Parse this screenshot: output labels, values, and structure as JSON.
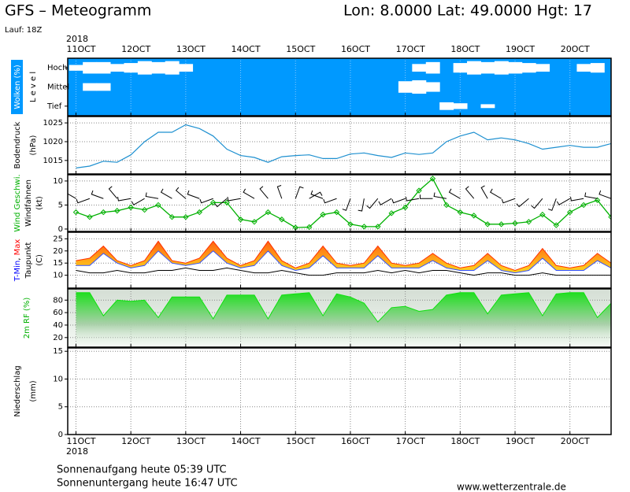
{
  "title": "GFS – Meteogramm",
  "location": "Lon: 8.0000 Lat: 49.0000 Hgt: 17",
  "run": "Lauf: 18Z",
  "footer": {
    "sunrise": "Sonnenaufgang heute 05:39 UTC",
    "sunset": "Sonnenuntergang heute 16:47 UTC",
    "source": "www.wetterzentrale.de"
  },
  "time_axis": {
    "year": "2018",
    "xlim": [
      -0.15,
      9.75
    ],
    "xticks": [
      {
        "value": 0,
        "label": "11OCT"
      },
      {
        "value": 1,
        "label": "12OCT"
      },
      {
        "value": 2,
        "label": "13OCT"
      },
      {
        "value": 3,
        "label": "14OCT"
      },
      {
        "value": 4,
        "label": "15OCT"
      },
      {
        "value": 5,
        "label": "16OCT"
      },
      {
        "value": 6,
        "label": "17OCT"
      },
      {
        "value": 7,
        "label": "18OCT"
      },
      {
        "value": 8,
        "label": "19OCT"
      },
      {
        "value": 9,
        "label": "20OCT"
      }
    ],
    "x": [
      0,
      0.25,
      0.5,
      0.75,
      1,
      1.25,
      1.5,
      1.75,
      2,
      2.25,
      2.5,
      2.75,
      3,
      3.25,
      3.5,
      3.75,
      4,
      4.25,
      4.5,
      4.75,
      5,
      5.25,
      5.5,
      5.75,
      6,
      6.25,
      6.5,
      6.75,
      7,
      7.25,
      7.5,
      7.75,
      8,
      8.25,
      8.5,
      8.75,
      9,
      9.25,
      9.5,
      9.75
    ]
  },
  "chart_data": [
    {
      "type": "cloud",
      "background": "#0099ff",
      "cloud_color": "#ffffff",
      "ylabel": [
        [
          {
            "text": "Wolken (%)",
            "color": "#ffffff",
            "background": "#0099ff"
          }
        ],
        [
          {
            "text": "L e v e l",
            "color": "#000000"
          }
        ]
      ],
      "series": [
        {
          "name": "Hoch",
          "values": [
            30,
            60,
            60,
            40,
            50,
            70,
            60,
            70,
            40,
            0,
            0,
            0,
            0,
            0,
            0,
            0,
            0,
            0,
            0,
            0,
            0,
            0,
            0,
            0,
            0,
            40,
            60,
            0,
            50,
            70,
            60,
            70,
            60,
            50,
            40,
            0,
            0,
            40,
            50,
            0
          ]
        },
        {
          "name": "Mittel",
          "values": [
            0,
            40,
            40,
            0,
            0,
            0,
            0,
            0,
            0,
            0,
            0,
            0,
            0,
            0,
            0,
            0,
            0,
            0,
            0,
            0,
            0,
            0,
            0,
            0,
            60,
            70,
            50,
            0,
            0,
            0,
            0,
            0,
            0,
            0,
            0,
            0,
            0,
            0,
            0,
            0
          ]
        },
        {
          "name": "Tief",
          "values": [
            0,
            0,
            0,
            0,
            0,
            0,
            0,
            0,
            0,
            0,
            0,
            0,
            0,
            0,
            0,
            0,
            0,
            0,
            0,
            0,
            0,
            0,
            0,
            0,
            0,
            0,
            0,
            40,
            30,
            0,
            20,
            0,
            0,
            0,
            0,
            0,
            0,
            0,
            0,
            0
          ]
        }
      ]
    },
    {
      "type": "line",
      "ylim": [
        1011.4,
        1026.7
      ],
      "yticks": [
        1015,
        1020,
        1025
      ],
      "grid": true,
      "ylabel": [
        [
          {
            "text": "Bodendruck",
            "color": "#000000"
          }
        ],
        [
          {
            "text": "(hPa)",
            "color": "#000000"
          }
        ]
      ],
      "series": [
        {
          "color": "#1e90d0",
          "values": [
            1013,
            1013.5,
            1014.8,
            1014.5,
            1016.5,
            1020,
            1022.5,
            1022.5,
            1024.5,
            1023.5,
            1021.5,
            1018,
            1016.3,
            1015.8,
            1014.5,
            1016,
            1016.3,
            1016.5,
            1015.5,
            1015.5,
            1016.7,
            1017,
            1016.3,
            1015.8,
            1017,
            1016.6,
            1017,
            1020,
            1021.5,
            1022.5,
            1020.5,
            1021,
            1020.5,
            1019.5,
            1018,
            1018.5,
            1019,
            1018.5,
            1018.5,
            1019.5
          ]
        }
      ]
    },
    {
      "type": "wind",
      "ylim": [
        -0.5,
        11.3
      ],
      "yticks": [
        0,
        5,
        10
      ],
      "grid": true,
      "ylabel": [
        [
          {
            "text": "Wind Geschwi.",
            "color": "#00b000"
          }
        ],
        [
          {
            "text": "Windfahnen",
            "color": "#000000"
          }
        ],
        [
          {
            "text": "(kt)",
            "color": "#000000"
          }
        ]
      ],
      "series": [
        {
          "kind": "speed",
          "color": "#00b000",
          "values": [
            3.5,
            2.5,
            3.5,
            3.8,
            4.5,
            4,
            5,
            2.5,
            2.5,
            3.5,
            5.5,
            5.5,
            2,
            1.5,
            3.5,
            2,
            0.3,
            0.4,
            3,
            3.5,
            1,
            0.5,
            0.5,
            3.3,
            4.5,
            8,
            10.5,
            5,
            3.5,
            2.8,
            1,
            1,
            1.2,
            1.5,
            3,
            0.8,
            3.5,
            5,
            6,
            2.5
          ]
        },
        {
          "kind": "barb",
          "color": "#000000",
          "values": [
            300,
            250,
            290,
            320,
            260,
            240,
            280,
            300,
            310,
            290,
            250,
            230,
            260,
            300,
            320,
            340,
            20,
            60,
            290,
            250,
            200,
            190,
            220,
            240,
            250,
            260,
            270,
            280,
            300,
            320,
            330,
            300,
            250,
            230,
            220,
            200,
            240,
            260,
            280,
            290
          ]
        }
      ]
    },
    {
      "type": "band",
      "ylim": [
        4.7,
        27.7
      ],
      "yticks": [
        10,
        15,
        20,
        25
      ],
      "grid": true,
      "fill": [
        "#ffe020",
        "#ff5a10"
      ],
      "ylabel": [
        [
          {
            "text": "T-Min",
            "color": "#0000ff"
          },
          {
            "text": ", ",
            "color": "#000000"
          },
          {
            "text": "Max",
            "color": "#ff0000"
          }
        ],
        [
          {
            "text": "Taupunkt",
            "color": "#000000"
          }
        ],
        [
          {
            "text": "(C)",
            "color": "#000000"
          }
        ]
      ],
      "series": [
        {
          "color": "#3050ff",
          "values": [
            14,
            14,
            19,
            15,
            13,
            14,
            20,
            15,
            14,
            15,
            20,
            15,
            13,
            14,
            20,
            14,
            12,
            13,
            18,
            13,
            13,
            13,
            18,
            13,
            13,
            13,
            16,
            13,
            12,
            12,
            16,
            12,
            11,
            12,
            17,
            12,
            12,
            12,
            16,
            13
          ]
        },
        {
          "color": "#ff3000",
          "values": [
            16,
            17,
            22,
            16,
            14,
            16,
            24,
            16,
            15,
            17,
            24,
            17,
            14,
            16,
            24,
            16,
            13,
            15,
            22,
            15,
            14,
            15,
            22,
            15,
            14,
            15,
            19,
            15,
            13,
            14,
            19,
            14,
            12,
            14,
            21,
            14,
            13,
            14,
            19,
            15
          ]
        },
        {
          "color": "#000000",
          "values": [
            12,
            11,
            11,
            12,
            11,
            11,
            12,
            12,
            13,
            12,
            12,
            13,
            12,
            11,
            11,
            12,
            11,
            10,
            10,
            11,
            11,
            11,
            12,
            11,
            12,
            11,
            12,
            12,
            11,
            10,
            11,
            11,
            10,
            10,
            11,
            10,
            10,
            10,
            10,
            10
          ]
        }
      ]
    },
    {
      "type": "area",
      "ylim": [
        4.6,
        98
      ],
      "yticks": [
        20,
        40,
        60,
        80
      ],
      "grid": true,
      "color": "#10e010",
      "ylabel": [
        [
          {
            "text": "2m RF (%)",
            "color": "#00b000"
          }
        ]
      ],
      "values": [
        92,
        92,
        55,
        80,
        78,
        80,
        52,
        85,
        85,
        85,
        50,
        88,
        88,
        88,
        50,
        88,
        90,
        92,
        55,
        90,
        85,
        75,
        45,
        68,
        70,
        62,
        65,
        88,
        92,
        92,
        58,
        88,
        90,
        92,
        55,
        90,
        92,
        92,
        52,
        75
      ]
    },
    {
      "type": "bar",
      "ylim": [
        0,
        15.6
      ],
      "yticks": [
        0,
        5,
        10,
        15
      ],
      "grid": true,
      "color": "#0000ff",
      "ylabel": [
        [
          {
            "text": "Niederschlag",
            "color": "#000000"
          }
        ],
        [
          {
            "text": "(mm)",
            "color": "#000000"
          }
        ]
      ],
      "values": [
        0,
        0,
        0,
        0,
        0,
        0,
        0,
        0,
        0,
        0,
        0,
        0,
        0,
        0,
        0,
        0,
        0,
        0,
        0,
        0,
        0,
        0,
        0,
        0,
        0,
        0,
        0,
        0,
        0,
        0,
        0,
        0,
        0,
        0,
        0,
        0,
        0,
        0,
        0,
        0
      ]
    }
  ]
}
